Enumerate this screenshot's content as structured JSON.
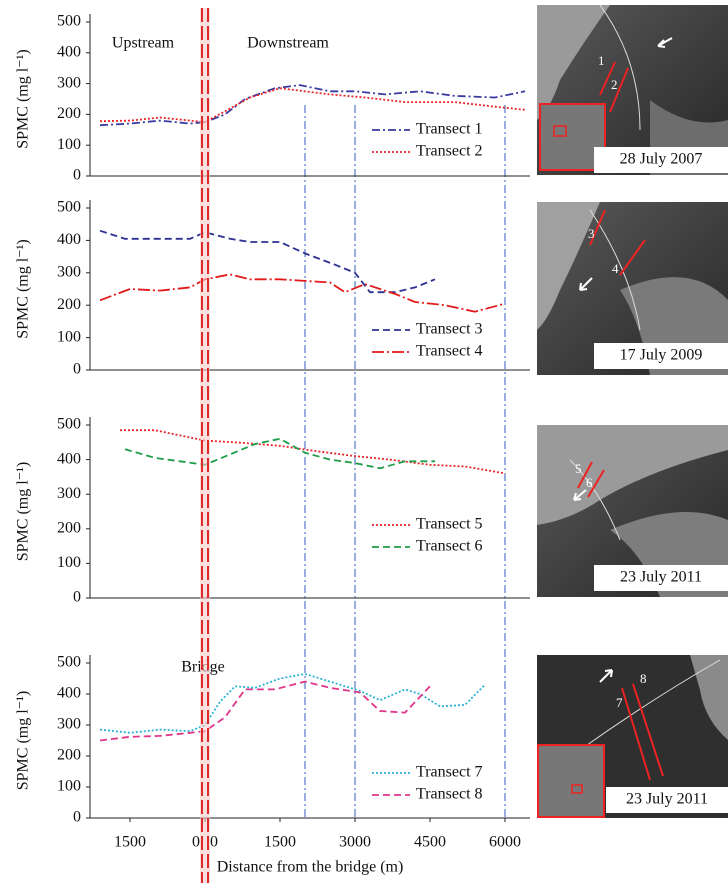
{
  "chart_data": [
    {
      "type": "line",
      "ylabel": "SPMC (mg l⁻¹)",
      "ylim": [
        0,
        500
      ],
      "yticks": [
        0,
        100,
        200,
        300,
        400,
        500
      ],
      "xlim": [
        -2300,
        6500
      ],
      "annotations": [
        "Upstream",
        "Downstream"
      ],
      "series": [
        {
          "name": "Transect 1",
          "color": "#3a3aa0",
          "dash": "dashdot",
          "x": [
            -2100,
            -1500,
            -900,
            -300,
            0,
            400,
            800,
            1400,
            1900,
            2500,
            3000,
            3600,
            4300,
            5000,
            5800,
            6400
          ],
          "values": [
            165,
            170,
            180,
            170,
            175,
            200,
            250,
            285,
            295,
            275,
            275,
            265,
            275,
            260,
            255,
            275
          ]
        },
        {
          "name": "Transect 2",
          "color": "#e8262a",
          "dash": "dot",
          "x": [
            -2100,
            -1500,
            -900,
            -300,
            0,
            400,
            900,
            1500,
            2000,
            2500,
            3200,
            4000,
            5000,
            5800,
            6400
          ],
          "values": [
            178,
            180,
            190,
            180,
            175,
            210,
            255,
            285,
            275,
            265,
            255,
            240,
            240,
            225,
            215
          ]
        }
      ]
    },
    {
      "type": "line",
      "ylabel": "SPMC (mg l⁻¹)",
      "ylim": [
        0,
        500
      ],
      "yticks": [
        0,
        100,
        200,
        300,
        400,
        500
      ],
      "xlim": [
        -2300,
        6500
      ],
      "series": [
        {
          "name": "Transect 3",
          "color": "#2e3192",
          "dash": "dash",
          "x": [
            -2100,
            -1600,
            -900,
            -300,
            0,
            500,
            900,
            1500,
            2000,
            2600,
            3000,
            3300,
            3800,
            4200,
            4600
          ],
          "values": [
            430,
            405,
            405,
            405,
            425,
            405,
            395,
            395,
            360,
            325,
            300,
            240,
            240,
            255,
            280
          ]
        },
        {
          "name": "Transect 4",
          "color": "#e31a1c",
          "dash": "longdashdot",
          "x": [
            -2100,
            -1500,
            -900,
            -300,
            0,
            500,
            900,
            1500,
            2000,
            2500,
            2800,
            3200,
            3800,
            4200,
            4800,
            5400,
            6000
          ],
          "values": [
            215,
            250,
            245,
            255,
            280,
            295,
            280,
            280,
            275,
            270,
            240,
            265,
            235,
            210,
            200,
            180,
            205
          ]
        }
      ]
    },
    {
      "type": "line",
      "ylabel": "SPMC (mg l⁻¹)",
      "ylim": [
        0,
        500
      ],
      "yticks": [
        0,
        100,
        200,
        300,
        400,
        500
      ],
      "xlim": [
        -2300,
        6500
      ],
      "series": [
        {
          "name": "Transect 5",
          "color": "#e8262a",
          "dash": "dot",
          "x": [
            -1700,
            -1000,
            -500,
            0,
            600,
            1500,
            2200,
            3000,
            3700,
            4500,
            5200,
            6000
          ],
          "values": [
            485,
            485,
            470,
            455,
            450,
            440,
            425,
            410,
            400,
            385,
            380,
            360
          ]
        },
        {
          "name": "Transect 6",
          "color": "#1f9e4a",
          "dash": "dash",
          "x": [
            -1600,
            -1000,
            -500,
            0,
            500,
            1000,
            1500,
            2000,
            2500,
            3000,
            3500,
            4000,
            4600
          ],
          "values": [
            430,
            405,
            395,
            385,
            415,
            445,
            460,
            420,
            400,
            390,
            375,
            395,
            395
          ]
        }
      ]
    },
    {
      "type": "line",
      "ylabel": "SPMC (mg l⁻¹)",
      "ylim": [
        0,
        500
      ],
      "yticks": [
        0,
        100,
        200,
        300,
        400,
        500
      ],
      "xlim": [
        -2300,
        6500
      ],
      "xlabel": "Distance from the bridge  (m)",
      "xticks": [
        {
          "value": -1500,
          "label": "1500"
        },
        0,
        0,
        1500,
        3000,
        4500,
        6000
      ],
      "annotations": [
        "Bridge"
      ],
      "series": [
        {
          "name": "Transect 7",
          "color": "#2bb3d6",
          "dash": "dot",
          "x": [
            -2100,
            -1500,
            -900,
            -300,
            0,
            300,
            600,
            1000,
            1500,
            2000,
            2500,
            3100,
            3500,
            4000,
            4300,
            4700,
            5200,
            5600
          ],
          "values": [
            285,
            275,
            285,
            280,
            300,
            375,
            425,
            420,
            450,
            465,
            440,
            410,
            380,
            415,
            400,
            360,
            365,
            430
          ]
        },
        {
          "name": "Transect 8",
          "color": "#e0368a",
          "dash": "dash",
          "x": [
            -2100,
            -1500,
            -900,
            -300,
            0,
            400,
            800,
            1400,
            2000,
            2500,
            3100,
            3500,
            4000,
            4500
          ],
          "values": [
            250,
            262,
            265,
            275,
            280,
            325,
            415,
            415,
            440,
            420,
            405,
            345,
            340,
            425
          ]
        }
      ]
    }
  ],
  "reference_x": [
    2000,
    3000,
    6000
  ],
  "images": [
    {
      "date": "28 July 2007",
      "labels": [
        "1",
        "2"
      ]
    },
    {
      "date": "17 July 2009",
      "labels": [
        "3",
        "4"
      ]
    },
    {
      "date": "23 July 2011",
      "labels": [
        "5",
        "6"
      ]
    },
    {
      "date": "23 July 2011",
      "labels": [
        "7",
        "8"
      ]
    }
  ]
}
